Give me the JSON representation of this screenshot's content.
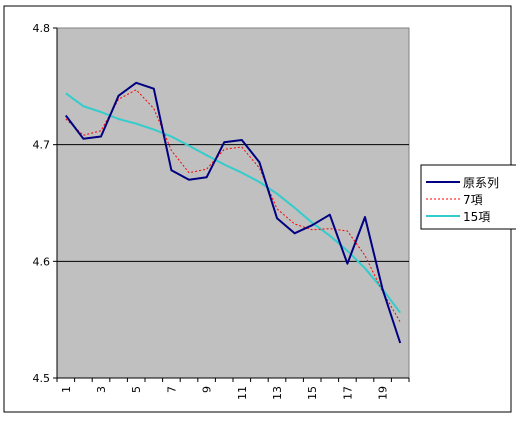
{
  "chart_data": {
    "type": "line",
    "x": [
      1,
      2,
      3,
      4,
      5,
      6,
      7,
      8,
      9,
      10,
      11,
      12,
      13,
      14,
      15,
      16,
      17,
      18,
      19,
      20
    ],
    "x_tick_labels": [
      "1",
      "3",
      "5",
      "7",
      "9",
      "11",
      "13",
      "15",
      "17",
      "19"
    ],
    "ylim": [
      4.5,
      4.8
    ],
    "y_tick_labels": [
      "4.5",
      "4.6",
      "4.7",
      "4.8"
    ],
    "grid": "horizontal",
    "legend_position": "right",
    "series": [
      {
        "name": "原系列",
        "color": "#000080",
        "style": "solid",
        "values": [
          4.725,
          4.705,
          4.707,
          4.742,
          4.753,
          4.748,
          4.678,
          4.67,
          4.672,
          4.702,
          4.704,
          4.685,
          4.637,
          4.624,
          4.631,
          4.64,
          4.598,
          4.638,
          4.576,
          4.53
        ]
      },
      {
        "name": "7項",
        "color": "#ff0000",
        "style": "dotted",
        "values": [
          4.722,
          4.708,
          4.712,
          4.739,
          4.747,
          4.731,
          4.695,
          4.676,
          4.679,
          4.696,
          4.698,
          4.68,
          4.645,
          4.632,
          4.627,
          4.628,
          4.626,
          4.605,
          4.574,
          4.548
        ]
      },
      {
        "name": "15項",
        "color": "#33cccc",
        "style": "solid",
        "values": [
          4.744,
          4.733,
          4.728,
          4.722,
          4.718,
          4.713,
          4.707,
          4.699,
          4.691,
          4.683,
          4.676,
          4.668,
          4.658,
          4.646,
          4.633,
          4.622,
          4.609,
          4.594,
          4.576,
          4.556
        ]
      }
    ]
  }
}
